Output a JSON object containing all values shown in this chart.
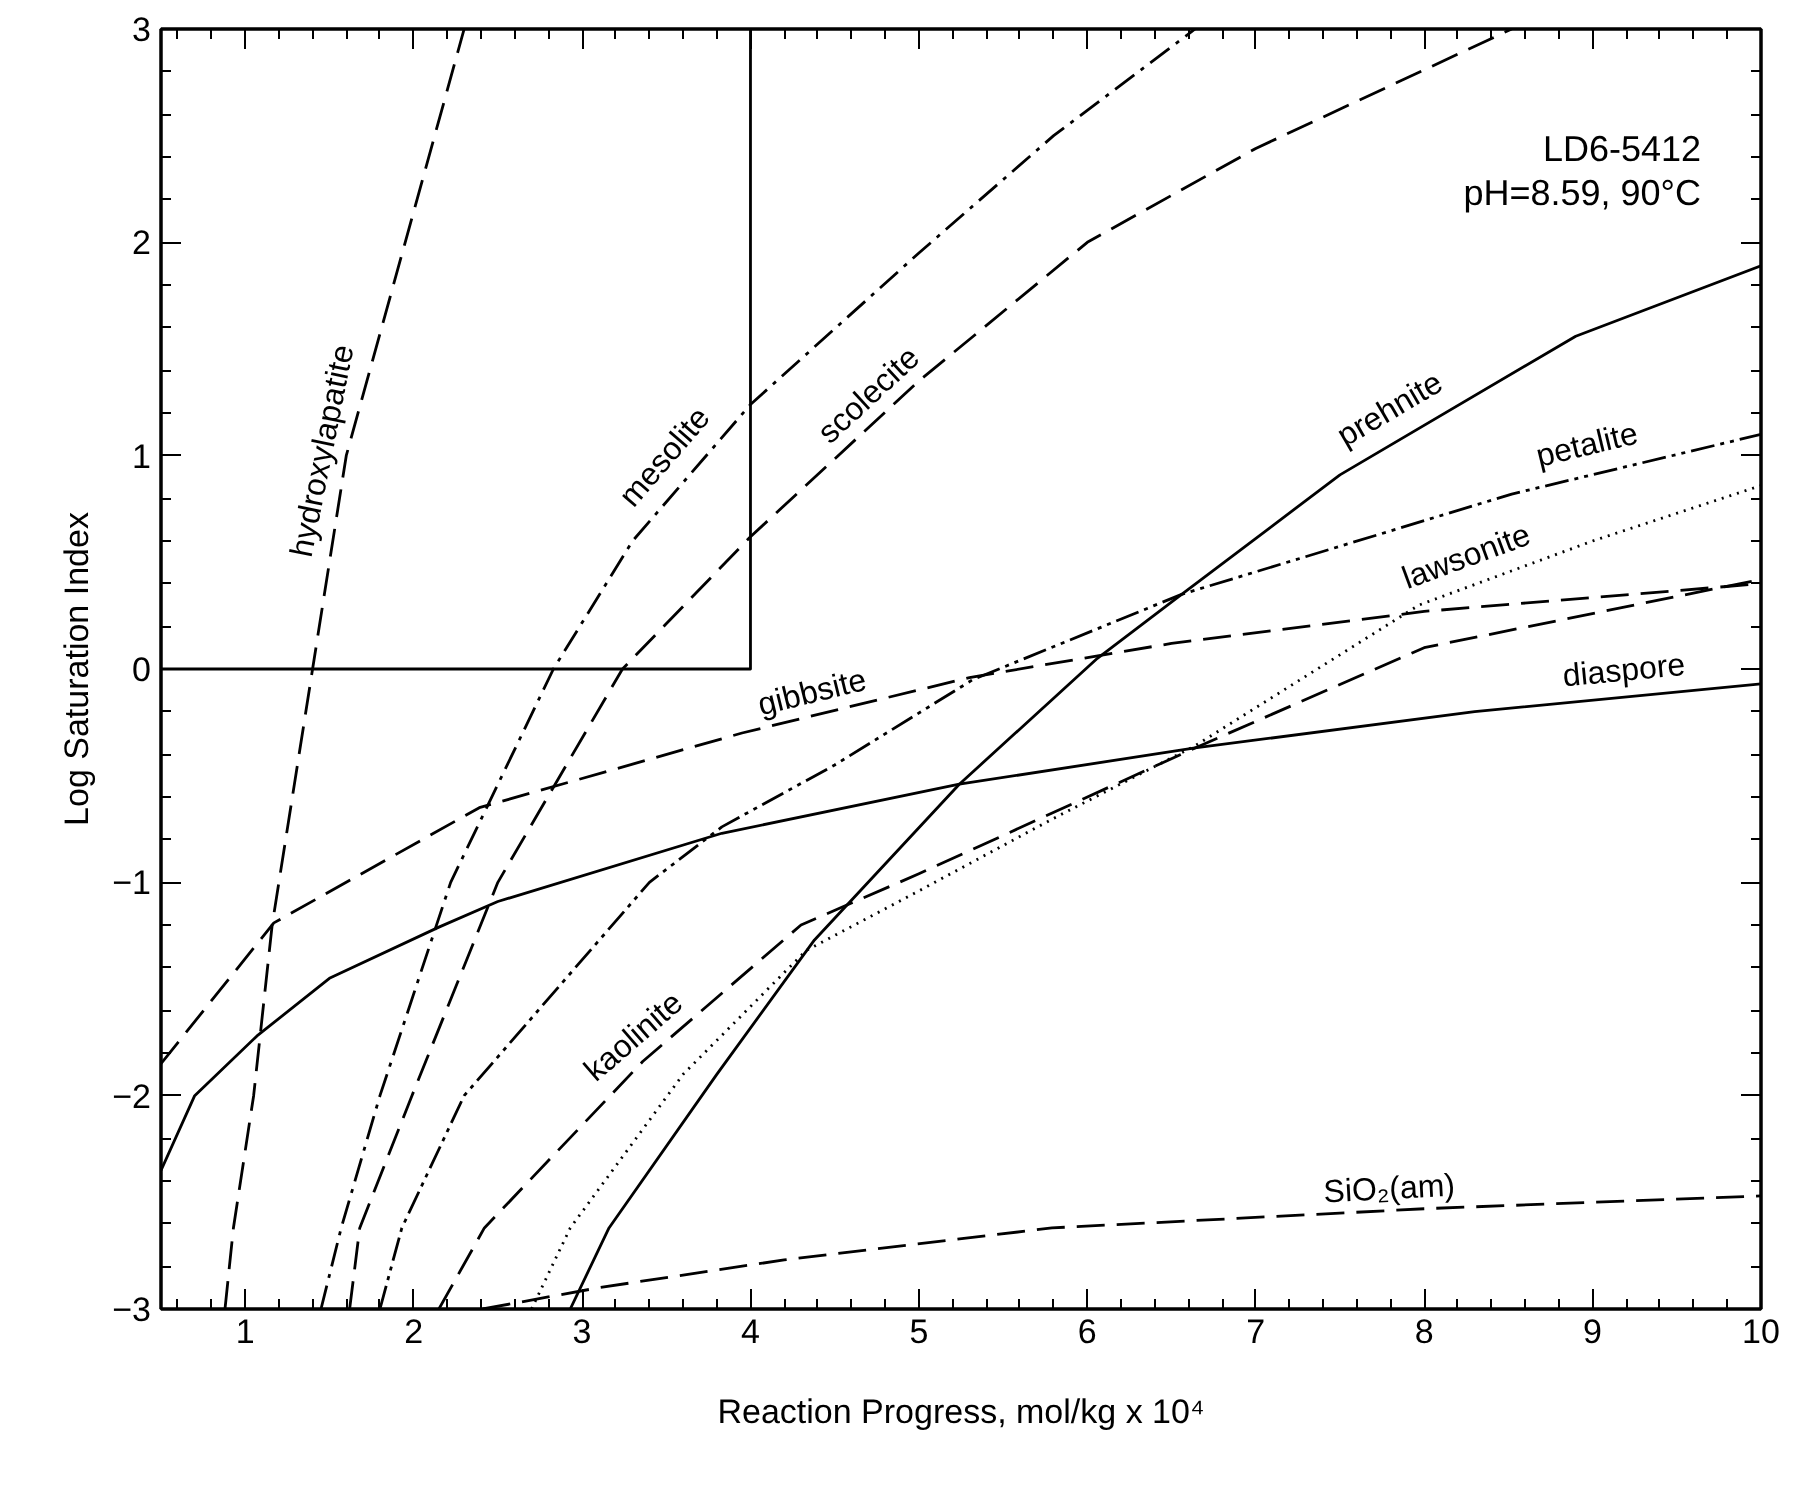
{
  "chart_data": {
    "type": "line",
    "xlabel": "Reaction Progress, mol/kg x 10⁴",
    "ylabel": "Log Saturation Index",
    "xlim": [
      0.5,
      10
    ],
    "ylim": [
      -3,
      3
    ],
    "xticks": [
      1,
      2,
      3,
      4,
      5,
      6,
      7,
      8,
      9,
      10
    ],
    "yticks": [
      -3,
      -2,
      -1,
      0,
      1,
      2,
      3
    ],
    "grid": false,
    "marker": "none",
    "series": [
      {
        "color": "#000000",
        "line_style": "dashed",
        "x": [
          0.88,
          0.93,
          1.05,
          1.16,
          1.4,
          1.6,
          1.95,
          2.3
        ],
        "values": [
          -3,
          -2.62,
          -2,
          -1.2,
          0,
          1,
          2,
          3
        ]
      },
      {
        "color": "#000000",
        "line_style": "dashdot",
        "x": [
          1.45,
          1.57,
          1.8,
          2.22,
          2.83,
          3.3,
          4,
          5,
          5.8,
          6.64
        ],
        "values": [
          -3,
          -2.62,
          -2,
          -1,
          0,
          0.6,
          1.24,
          1.95,
          2.5,
          3
        ]
      },
      {
        "color": "#000000",
        "line_style": "dashed",
        "x": [
          1.62,
          1.68,
          1.99,
          2.5,
          3.24,
          4,
          5,
          6,
          7,
          8.52
        ],
        "values": [
          -3,
          -2.62,
          -2,
          -1,
          0,
          0.62,
          1.35,
          2.0,
          2.44,
          3
        ]
      },
      {
        "color": "#000000",
        "line_style": "dashdotdot",
        "x": [
          1.8,
          1.93,
          2.3,
          3.4,
          3.83,
          4.5,
          5.32,
          6.56,
          8.52,
          10
        ],
        "values": [
          -3,
          -2.62,
          -2,
          -1,
          -0.74,
          -0.45,
          -0.05,
          0.35,
          0.82,
          1.1
        ]
      },
      {
        "color": "#000000",
        "line_style": "dashed",
        "x": [
          2.15,
          2.42,
          3.36,
          4.3,
          5,
          6.64,
          8,
          10
        ],
        "values": [
          -3,
          -2.62,
          -1.84,
          -1.2,
          -0.96,
          -0.37,
          0.1,
          0.42
        ]
      },
      {
        "color": "#000000",
        "line_style": "dashed",
        "x": [
          0.5,
          1.17,
          2.39,
          3.95,
          5.3,
          6.5,
          8,
          10
        ],
        "values": [
          -1.85,
          -1.19,
          -0.65,
          -0.3,
          -0.04,
          0.12,
          0.27,
          0.4
        ]
      },
      {
        "color": "#000000",
        "line_style": "solid",
        "x": [
          0.5,
          0.7,
          1.07,
          1.5,
          2.15,
          2.5,
          3.83,
          5.24,
          6.64,
          8.3,
          10
        ],
        "values": [
          -2.35,
          -2.0,
          -1.72,
          -1.45,
          -1.21,
          -1.09,
          -0.77,
          -0.54,
          -0.37,
          -0.2,
          -0.07
        ]
      },
      {
        "color": "#000000",
        "line_style": "dotted",
        "x": [
          2.7,
          2.93,
          3.6,
          4.33,
          5,
          5.8,
          6.64,
          7.97,
          9,
          10
        ],
        "values": [
          -3,
          -2.62,
          -1.9,
          -1.32,
          -1.04,
          -0.7,
          -0.36,
          0.3,
          0.6,
          0.86
        ]
      },
      {
        "color": "#000000",
        "line_style": "solid",
        "x": [
          2.93,
          3.16,
          3.8,
          4.38,
          5.24,
          6.06,
          6.56,
          7.5,
          8.9,
          10
        ],
        "values": [
          -3,
          -2.62,
          -1.9,
          -1.27,
          -0.54,
          0.05,
          0.35,
          0.91,
          1.56,
          1.89
        ]
      },
      {
        "color": "#000000",
        "line_style": "dashed",
        "x": [
          2.41,
          3.1,
          4.2,
          5.79,
          8,
          10
        ],
        "values": [
          -3,
          -2.9,
          -2.77,
          -2.62,
          -2.53,
          -2.47
        ]
      },
      {
        "color": "#000000",
        "line_style": "solid",
        "x": [
          0.5,
          4,
          4
        ],
        "values": [
          0,
          0,
          3
        ]
      }
    ],
    "annotations": [
      "LD6-5412",
      "pH=8.59, 90°C",
      {
        "text": "hydroxylapatite",
        "x": 1.6,
        "y": 1.0
      },
      {
        "text": "mesolite",
        "x": 3.6,
        "y": 0.92
      },
      {
        "text": "scolecite",
        "x": 4.8,
        "y": 1.2
      },
      {
        "text": "prehnite",
        "x": 7.87,
        "y": 1.12
      },
      {
        "text": "petalite",
        "x": 9.0,
        "y": 0.94
      },
      {
        "text": "lawsonite",
        "x": 8.3,
        "y": 0.42
      },
      {
        "text": "gibbsite",
        "x": 4.4,
        "y": -0.22
      },
      {
        "text": "diaspore",
        "x": 9.2,
        "y": -0.12
      },
      {
        "text": "kaolinite",
        "x": 3.4,
        "y": -1.81
      },
      {
        "text": "SiO₂(am)",
        "x": 7.8,
        "y": -2.55
      }
    ]
  }
}
